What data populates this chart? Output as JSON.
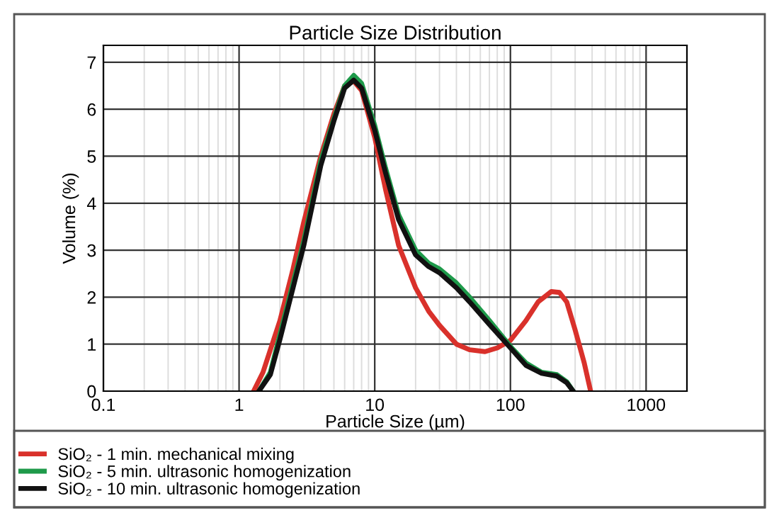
{
  "chart_data": {
    "type": "line",
    "title": "Particle Size Distribution",
    "xlabel": "Particle Size (µm)",
    "ylabel": "Volume (%)",
    "log": "x",
    "xlim": [
      0.1,
      2000
    ],
    "xticks": [
      0.1,
      1,
      10,
      100,
      1000
    ],
    "ylim": [
      0,
      7.36
    ],
    "yticks": [
      0,
      1,
      2,
      3,
      4,
      5,
      6,
      7
    ],
    "grid": true,
    "legend": "bottom",
    "marker": "none",
    "line_style": "solid",
    "series": [
      {
        "name": "SiO₂ - 1 min. mechanical mixing",
        "color": "#d9312b",
        "x": [
          1.28,
          1.5,
          2,
          2.5,
          3,
          4,
          5,
          6,
          7,
          8,
          10,
          12,
          15,
          20,
          25,
          30,
          40,
          50,
          65,
          80,
          100,
          130,
          160,
          200,
          230,
          260,
          300,
          350,
          390
        ],
        "values": [
          0,
          0.4,
          1.5,
          2.6,
          3.6,
          5.0,
          5.9,
          6.5,
          6.6,
          6.4,
          5.4,
          4.3,
          3.1,
          2.2,
          1.7,
          1.4,
          1.0,
          0.88,
          0.84,
          0.92,
          1.08,
          1.5,
          1.9,
          2.12,
          2.1,
          1.9,
          1.3,
          0.6,
          0
        ]
      },
      {
        "name": "SiO₂ - 5 min. ultrasonic homogenization",
        "color": "#1e9a4a",
        "x": [
          1.4,
          1.7,
          2,
          3,
          4,
          5,
          6,
          7,
          8,
          10,
          12,
          15,
          20,
          25,
          30,
          40,
          50,
          70,
          100,
          130,
          170,
          220,
          260,
          290
        ],
        "values": [
          0,
          0.4,
          1.2,
          3.2,
          4.9,
          5.8,
          6.5,
          6.72,
          6.55,
          5.65,
          4.75,
          3.75,
          3.0,
          2.72,
          2.6,
          2.3,
          2.0,
          1.5,
          0.95,
          0.6,
          0.4,
          0.35,
          0.2,
          0
        ]
      },
      {
        "name": "SiO₂ - 10 min. ultrasonic homogenization",
        "color": "#111111",
        "x": [
          1.4,
          1.7,
          2,
          3,
          4,
          5,
          6,
          7,
          8,
          10,
          12,
          15,
          20,
          25,
          30,
          40,
          50,
          70,
          100,
          130,
          170,
          220,
          260,
          290
        ],
        "values": [
          0,
          0.35,
          1.1,
          3.1,
          4.8,
          5.75,
          6.45,
          6.62,
          6.45,
          5.55,
          4.65,
          3.65,
          2.9,
          2.65,
          2.52,
          2.2,
          1.9,
          1.42,
          0.92,
          0.55,
          0.38,
          0.32,
          0.18,
          0
        ]
      }
    ]
  }
}
